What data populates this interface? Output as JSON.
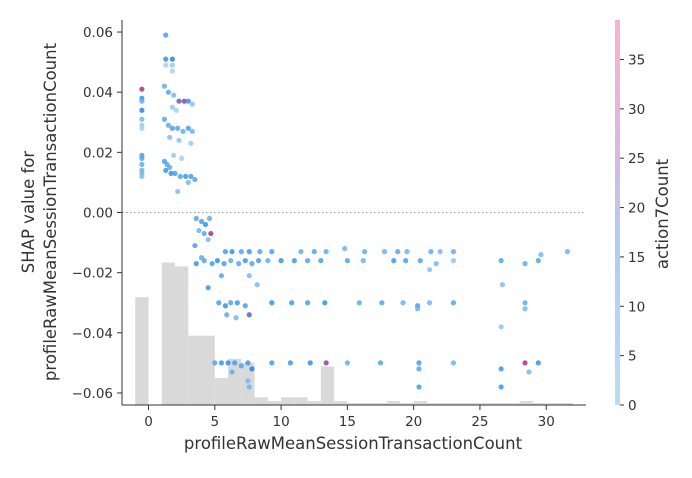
{
  "chart_data": {
    "type": "scatter",
    "xlabel": "profileRawMeanSessionTransactionCount",
    "ylabel": [
      "SHAP value for",
      "profileRawMeanSessionTransactionCount"
    ],
    "colorbar_label": "action7Count",
    "xlim": [
      -2,
      33
    ],
    "ylim": [
      -0.064,
      0.064
    ],
    "xticks": [
      0,
      5,
      10,
      15,
      20,
      25,
      30
    ],
    "yticks": [
      -0.06,
      -0.04,
      -0.02,
      0.0,
      0.02,
      0.04,
      0.06
    ],
    "ytick_labels": [
      "−0.06",
      "−0.04",
      "−0.02",
      "0.00",
      "0.02",
      "0.04",
      "0.06"
    ],
    "colorbar_range": [
      0,
      39
    ],
    "colorbar_ticks": [
      0,
      5,
      10,
      15,
      20,
      25,
      30,
      35
    ],
    "zero_line": true,
    "grid": false,
    "colors": {
      "low": "#b9dcf6",
      "mid": "#1e88e5",
      "high": "#ff0052",
      "histogram": "#d9d9d9",
      "zero_line": "#999999"
    },
    "histogram": {
      "bin_starts": [
        -1,
        1,
        2,
        3,
        4,
        5,
        6,
        7,
        8,
        9,
        10,
        11,
        12,
        13,
        14,
        15,
        16,
        17,
        18,
        19,
        20,
        21,
        22,
        23,
        24,
        25,
        26,
        27,
        28,
        29,
        30,
        31
      ],
      "bin_width": 0.5,
      "heights": [
        0.28,
        0.37,
        0.36,
        0.18,
        0.18,
        0.07,
        0.12,
        0.11,
        0.02,
        0.01,
        0.02,
        0.02,
        0.01,
        0.1,
        0.01,
        0.005,
        0.005,
        0.005,
        0.01,
        0.005,
        0.01,
        0.005,
        0.005,
        0.005,
        0.005,
        0.005,
        0.005,
        0.005,
        0.01,
        0.005,
        0.005,
        0.005
      ]
    },
    "series": [
      {
        "points": [
          [
            -0.5,
            0.041,
            30
          ],
          [
            -0.5,
            0.038,
            12
          ],
          [
            -0.5,
            0.037,
            8
          ],
          [
            -0.5,
            0.034,
            14
          ],
          [
            -0.5,
            0.031,
            6
          ],
          [
            -0.5,
            0.029,
            3
          ],
          [
            -0.5,
            0.028,
            2
          ],
          [
            -0.5,
            0.019,
            10
          ],
          [
            -0.5,
            0.018,
            9
          ],
          [
            -0.5,
            0.016,
            8
          ],
          [
            -0.5,
            0.014,
            7
          ],
          [
            -0.5,
            0.013,
            6
          ],
          [
            -0.5,
            0.012,
            5
          ],
          [
            1.3,
            0.059,
            10
          ],
          [
            1.3,
            0.051,
            12
          ],
          [
            1.3,
            0.049,
            2
          ],
          [
            1.8,
            0.051,
            14
          ],
          [
            1.8,
            0.049,
            3
          ],
          [
            1.8,
            0.047,
            2
          ],
          [
            1.2,
            0.042,
            8
          ],
          [
            1.5,
            0.04,
            9
          ],
          [
            1.9,
            0.039,
            6
          ],
          [
            2.3,
            0.037,
            22
          ],
          [
            2.7,
            0.037,
            28
          ],
          [
            3.0,
            0.037,
            12
          ],
          [
            3.3,
            0.036,
            4
          ],
          [
            1.8,
            0.035,
            3
          ],
          [
            2.1,
            0.034,
            2
          ],
          [
            1.2,
            0.031,
            9
          ],
          [
            1.5,
            0.029,
            8
          ],
          [
            1.8,
            0.028,
            10
          ],
          [
            2.2,
            0.028,
            9
          ],
          [
            2.6,
            0.027,
            8
          ],
          [
            3.0,
            0.028,
            10
          ],
          [
            3.3,
            0.027,
            7
          ],
          [
            1.6,
            0.025,
            5
          ],
          [
            2.3,
            0.024,
            4
          ],
          [
            3.2,
            0.023,
            3
          ],
          [
            1.2,
            0.017,
            10
          ],
          [
            1.4,
            0.016,
            9
          ],
          [
            1.6,
            0.015,
            8
          ],
          [
            1.3,
            0.014,
            11
          ],
          [
            1.7,
            0.013,
            12
          ],
          [
            2.0,
            0.013,
            10
          ],
          [
            2.4,
            0.012,
            9
          ],
          [
            2.8,
            0.012,
            11
          ],
          [
            3.2,
            0.012,
            10
          ],
          [
            3.5,
            0.011,
            9
          ],
          [
            1.9,
            0.019,
            3
          ],
          [
            2.5,
            0.018,
            2
          ],
          [
            3.0,
            0.01,
            6
          ],
          [
            2.2,
            0.007,
            5
          ],
          [
            3.6,
            -0.002,
            9
          ],
          [
            4.0,
            -0.003,
            10
          ],
          [
            4.3,
            -0.004,
            12
          ],
          [
            4.6,
            -0.002,
            8
          ],
          [
            3.8,
            -0.006,
            7
          ],
          [
            4.2,
            -0.007,
            9
          ],
          [
            4.7,
            -0.007,
            30
          ],
          [
            4.5,
            -0.009,
            6
          ],
          [
            3.5,
            -0.011,
            10
          ],
          [
            4.0,
            -0.015,
            8
          ],
          [
            3.6,
            -0.017,
            11
          ],
          [
            4.2,
            -0.016,
            9
          ],
          [
            4.8,
            -0.017,
            10
          ],
          [
            5.2,
            -0.016,
            12
          ],
          [
            5.7,
            -0.017,
            10
          ],
          [
            6.2,
            -0.016,
            8
          ],
          [
            6.8,
            -0.017,
            9
          ],
          [
            7.3,
            -0.016,
            11
          ],
          [
            7.8,
            -0.017,
            9
          ],
          [
            8.3,
            -0.016,
            10
          ],
          [
            9.0,
            -0.016,
            8
          ],
          [
            10.0,
            -0.016,
            12
          ],
          [
            11.0,
            -0.016,
            11
          ],
          [
            12.0,
            -0.016,
            9
          ],
          [
            13.0,
            -0.016,
            10
          ],
          [
            5.8,
            -0.013,
            10
          ],
          [
            6.3,
            -0.013,
            12
          ],
          [
            7.0,
            -0.013,
            9
          ],
          [
            7.6,
            -0.013,
            11
          ],
          [
            8.4,
            -0.013,
            9
          ],
          [
            9.3,
            -0.013,
            10
          ],
          [
            11.5,
            -0.013,
            8
          ],
          [
            12.5,
            -0.013,
            9
          ],
          [
            13.4,
            -0.013,
            8
          ],
          [
            14.8,
            -0.012,
            7
          ],
          [
            16.3,
            -0.013,
            8
          ],
          [
            17.8,
            -0.013,
            7
          ],
          [
            18.8,
            -0.013,
            9
          ],
          [
            19.5,
            -0.013,
            7
          ],
          [
            21.3,
            -0.013,
            8
          ],
          [
            22.0,
            -0.013,
            6
          ],
          [
            23.0,
            -0.013,
            8
          ],
          [
            15.0,
            -0.016,
            9
          ],
          [
            16.2,
            -0.016,
            7
          ],
          [
            18.5,
            -0.016,
            11
          ],
          [
            19.4,
            -0.016,
            10
          ],
          [
            20.5,
            -0.016,
            9
          ],
          [
            21.7,
            -0.017,
            6
          ],
          [
            23.0,
            -0.016,
            4
          ],
          [
            26.6,
            -0.016,
            9
          ],
          [
            28.4,
            -0.017,
            8
          ],
          [
            29.4,
            -0.016,
            9
          ],
          [
            31.6,
            -0.013,
            7
          ],
          [
            29.6,
            -0.014,
            6
          ],
          [
            5.5,
            -0.021,
            9
          ],
          [
            7.6,
            -0.021,
            6
          ],
          [
            4.5,
            -0.025,
            11
          ],
          [
            8.2,
            -0.024,
            6
          ],
          [
            26.7,
            -0.024,
            5
          ],
          [
            21.2,
            -0.019,
            4
          ],
          [
            5.3,
            -0.03,
            10
          ],
          [
            5.8,
            -0.031,
            12
          ],
          [
            6.2,
            -0.03,
            9
          ],
          [
            6.7,
            -0.03,
            11
          ],
          [
            7.3,
            -0.031,
            10
          ],
          [
            7.6,
            -0.034,
            20
          ],
          [
            5.9,
            -0.034,
            8
          ],
          [
            6.6,
            -0.035,
            6
          ],
          [
            9.3,
            -0.03,
            12
          ],
          [
            10.8,
            -0.03,
            11
          ],
          [
            12.0,
            -0.03,
            10
          ],
          [
            13.3,
            -0.03,
            12
          ],
          [
            15.9,
            -0.03,
            8
          ],
          [
            17.6,
            -0.03,
            9
          ],
          [
            19.2,
            -0.03,
            7
          ],
          [
            20.3,
            -0.031,
            10
          ],
          [
            21.2,
            -0.03,
            6
          ],
          [
            23.0,
            -0.03,
            9
          ],
          [
            28.4,
            -0.03,
            8
          ],
          [
            28.4,
            -0.032,
            6
          ],
          [
            20.3,
            -0.032,
            7
          ],
          [
            26.6,
            -0.038,
            4
          ],
          [
            5.0,
            -0.05,
            9
          ],
          [
            5.5,
            -0.05,
            11
          ],
          [
            6.0,
            -0.05,
            12
          ],
          [
            6.5,
            -0.05,
            10
          ],
          [
            7.0,
            -0.051,
            9
          ],
          [
            7.5,
            -0.05,
            11
          ],
          [
            7.8,
            -0.052,
            14
          ],
          [
            6.3,
            -0.053,
            8
          ],
          [
            7.5,
            -0.056,
            6
          ],
          [
            7.6,
            -0.058,
            7
          ],
          [
            9.3,
            -0.05,
            10
          ],
          [
            10.7,
            -0.05,
            11
          ],
          [
            12.2,
            -0.05,
            12
          ],
          [
            13.4,
            -0.05,
            26
          ],
          [
            15.0,
            -0.05,
            8
          ],
          [
            17.5,
            -0.05,
            9
          ],
          [
            20.4,
            -0.05,
            10
          ],
          [
            20.4,
            -0.052,
            9
          ],
          [
            23.0,
            -0.05,
            7
          ],
          [
            26.6,
            -0.052,
            11
          ],
          [
            28.4,
            -0.05,
            30
          ],
          [
            29.4,
            -0.05,
            12
          ],
          [
            20.4,
            -0.058,
            10
          ],
          [
            26.6,
            -0.058,
            11
          ],
          [
            28.7,
            -0.053,
            6
          ]
        ]
      }
    ]
  }
}
